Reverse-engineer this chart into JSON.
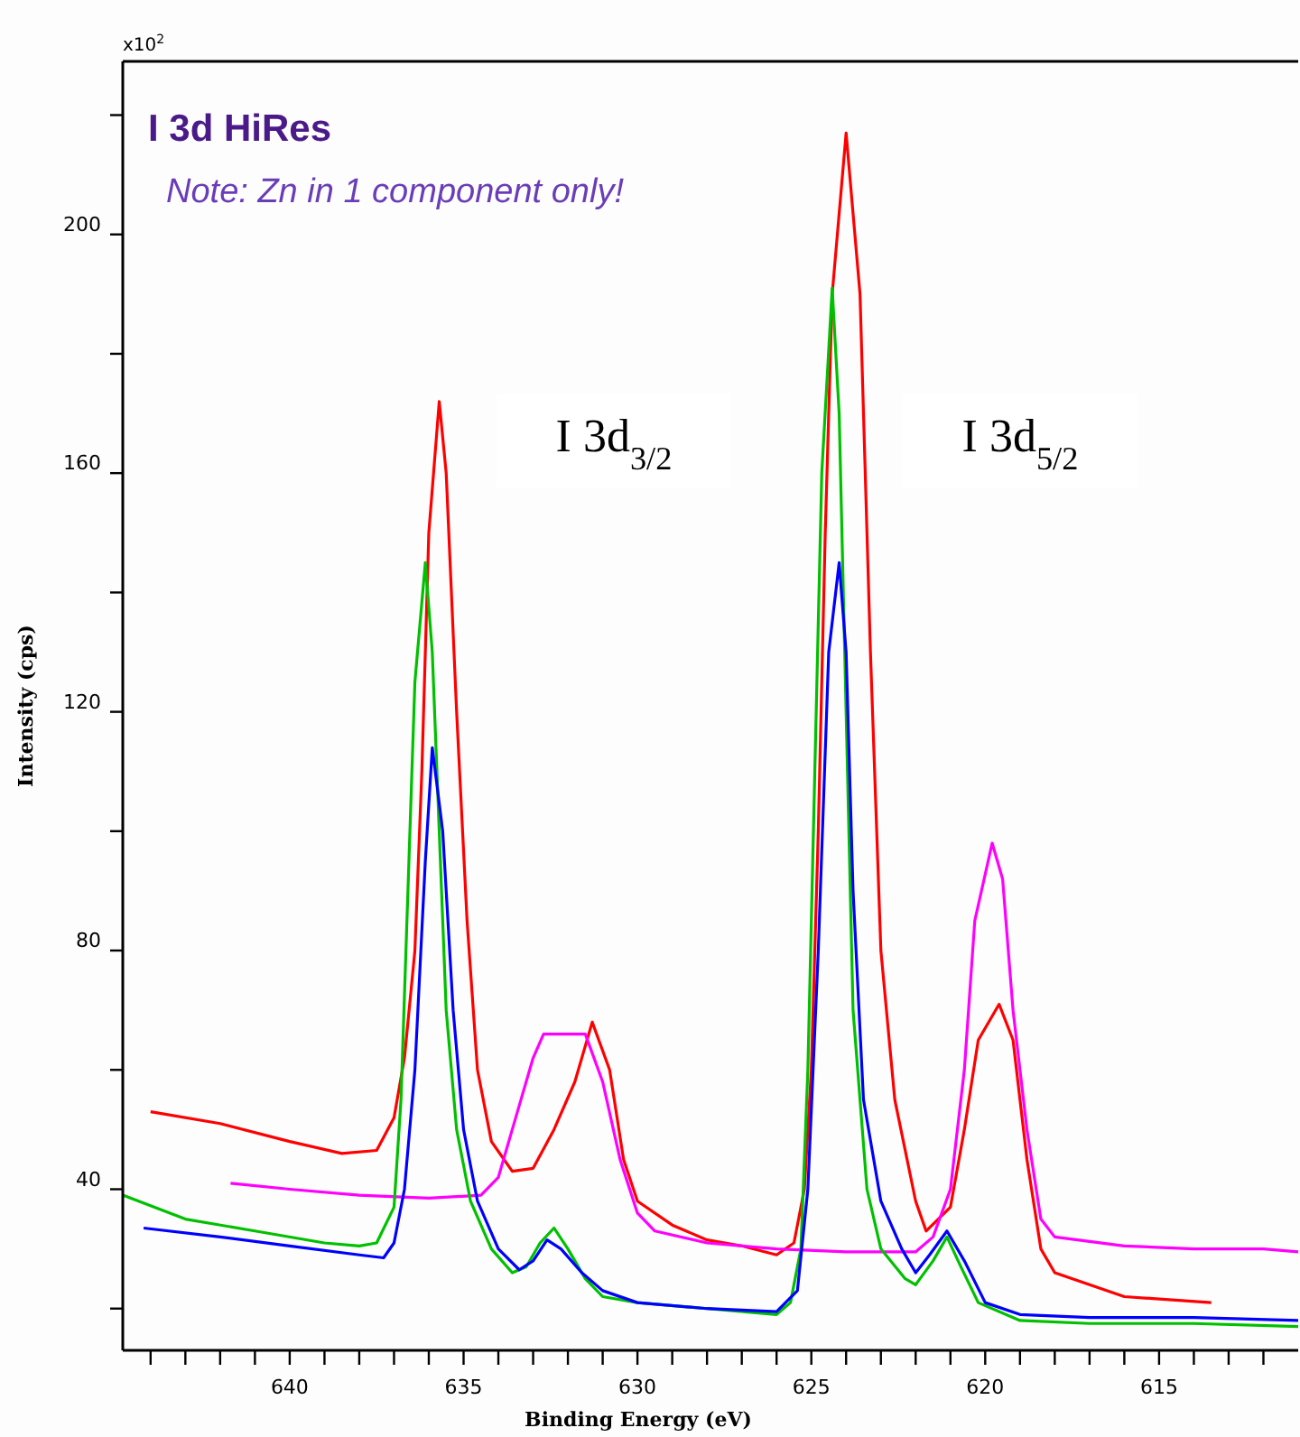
{
  "chart_data": {
    "type": "line",
    "title": "I 3d HiRes",
    "subtitle": "Note: Zn in 1 component only!",
    "xlabel": "Binding Energy (eV)",
    "ylabel": "Intensity (cps)",
    "xlim": [
      644.8,
      611
    ],
    "ylim": [
      13,
      229
    ],
    "xticks": [
      {
        "value": 644,
        "label": null
      },
      {
        "value": 643,
        "label": null
      },
      {
        "value": 642,
        "label": null
      },
      {
        "value": 641,
        "label": null
      },
      640,
      {
        "value": 639,
        "label": null
      },
      {
        "value": 638,
        "label": null
      },
      {
        "value": 637,
        "label": null
      },
      {
        "value": 636,
        "label": null
      },
      635,
      {
        "value": 634,
        "label": null
      },
      {
        "value": 633,
        "label": null
      },
      {
        "value": 632,
        "label": null
      },
      {
        "value": 631,
        "label": null
      },
      630,
      {
        "value": 629,
        "label": null
      },
      {
        "value": 628,
        "label": null
      },
      {
        "value": 627,
        "label": null
      },
      {
        "value": 626,
        "label": null
      },
      625,
      {
        "value": 624,
        "label": null
      },
      {
        "value": 623,
        "label": null
      },
      {
        "value": 622,
        "label": null
      },
      {
        "value": 621,
        "label": null
      },
      620,
      {
        "value": 619,
        "label": null
      },
      {
        "value": 618,
        "label": null
      },
      {
        "value": 617,
        "label": null
      },
      {
        "value": 616,
        "label": null
      },
      615,
      {
        "value": 614,
        "label": null
      },
      {
        "value": 613,
        "label": null
      },
      {
        "value": 612,
        "label": null
      }
    ],
    "yticks": [
      {
        "value": 20,
        "label": null
      },
      40,
      {
        "value": 60,
        "label": null
      },
      80,
      {
        "value": 100,
        "label": null
      },
      120,
      {
        "value": 140,
        "label": null
      },
      160,
      {
        "value": 180,
        "label": null
      },
      200,
      {
        "value": 220,
        "label": null
      }
    ],
    "grid": false,
    "marker": "none",
    "line_style": "solid",
    "annotations": [
      "x10$^{2}$",
      "I 3d$_{3/2}$",
      "I 3d$_{5/2}$"
    ],
    "series": [
      {
        "color": "#ff0000",
        "x": [
          644,
          642,
          640,
          638.5,
          637.5,
          637,
          636.7,
          636.4,
          636.2,
          636,
          635.7,
          635.5,
          635.2,
          634.9,
          634.6,
          634.2,
          633.6,
          633,
          632.4,
          631.8,
          631.3,
          630.8,
          630.4,
          630,
          629,
          628,
          627,
          626,
          625.5,
          625.2,
          625,
          624.8,
          624.6,
          624.4,
          624,
          623.6,
          623.3,
          623,
          622.6,
          622,
          621.7,
          621,
          620.6,
          620.2,
          619.6,
          619.2,
          618.8,
          618.4,
          618,
          617,
          616,
          613.5
        ],
        "values": [
          53,
          51,
          48,
          46,
          46.5,
          52,
          62,
          80,
          110,
          150,
          172,
          160,
          120,
          85,
          60,
          48,
          43,
          43.5,
          50,
          58,
          68,
          60,
          45,
          38,
          34,
          31.5,
          30.5,
          29,
          31,
          40,
          60,
          100,
          150,
          190,
          217,
          190,
          130,
          80,
          55,
          38,
          33,
          37,
          50,
          65,
          71,
          65,
          45,
          30,
          26,
          24,
          22,
          21
        ]
      },
      {
        "color": "#ff00ff",
        "x": [
          641.7,
          640,
          638,
          636,
          634.5,
          634,
          633.5,
          633,
          632.7,
          631.5,
          631,
          630.5,
          630,
          629.5,
          628,
          626,
          624,
          622,
          621.5,
          621,
          620.6,
          620.3,
          619.8,
          619.5,
          619.2,
          618.8,
          618.4,
          618,
          616,
          614,
          612,
          611
        ],
        "values": [
          41,
          40,
          39,
          38.5,
          39,
          42,
          52,
          62,
          66,
          66,
          58,
          45,
          36,
          33,
          31,
          30,
          29.5,
          29.5,
          32,
          40,
          60,
          85,
          98,
          92,
          70,
          50,
          35,
          32,
          30.5,
          30,
          30,
          29.5
        ]
      },
      {
        "color": "#00c000",
        "x": [
          644.8,
          643,
          641,
          639,
          638,
          637.5,
          637,
          636.8,
          636.6,
          636.4,
          636.1,
          635.9,
          635.7,
          635.5,
          635.2,
          634.8,
          634.2,
          633.6,
          633.2,
          632.8,
          632.4,
          632,
          631.5,
          631,
          630,
          628,
          626,
          625.6,
          625.3,
          625.1,
          624.9,
          624.7,
          624.4,
          624.2,
          624,
          623.8,
          623.4,
          623,
          622.3,
          622,
          621.5,
          621.1,
          620.7,
          620.2,
          619,
          617,
          614,
          611
        ],
        "values": [
          39,
          35,
          33,
          31,
          30.5,
          31,
          37,
          55,
          90,
          125,
          145,
          130,
          100,
          70,
          50,
          38,
          30,
          26,
          27,
          31,
          33.5,
          30,
          25,
          22,
          21,
          20,
          19,
          21,
          30,
          60,
          110,
          160,
          191,
          170,
          120,
          70,
          40,
          30,
          25,
          24,
          28,
          32,
          27,
          21,
          18,
          17.5,
          17.5,
          17
        ]
      },
      {
        "color": "#0000ff",
        "x": [
          644.2,
          642,
          640,
          638,
          637.3,
          637,
          636.7,
          636.4,
          636.1,
          635.9,
          635.6,
          635.3,
          635,
          634.6,
          634,
          633.4,
          633,
          632.6,
          632.2,
          631.6,
          631,
          630,
          628,
          626,
          625.4,
          625.1,
          624.8,
          624.5,
          624.2,
          624,
          623.8,
          623.5,
          623,
          622.4,
          622,
          621.6,
          621.1,
          620.6,
          620,
          619,
          617,
          614,
          611
        ],
        "values": [
          33.5,
          32,
          30.5,
          29,
          28.5,
          31,
          40,
          60,
          95,
          114,
          100,
          70,
          50,
          38,
          30,
          26.5,
          28,
          31.5,
          30,
          26,
          23,
          21,
          20,
          19.5,
          23,
          40,
          80,
          130,
          145,
          130,
          90,
          55,
          38,
          30,
          26,
          29,
          33,
          28,
          21,
          19,
          18.5,
          18.5,
          18
        ]
      }
    ]
  }
}
